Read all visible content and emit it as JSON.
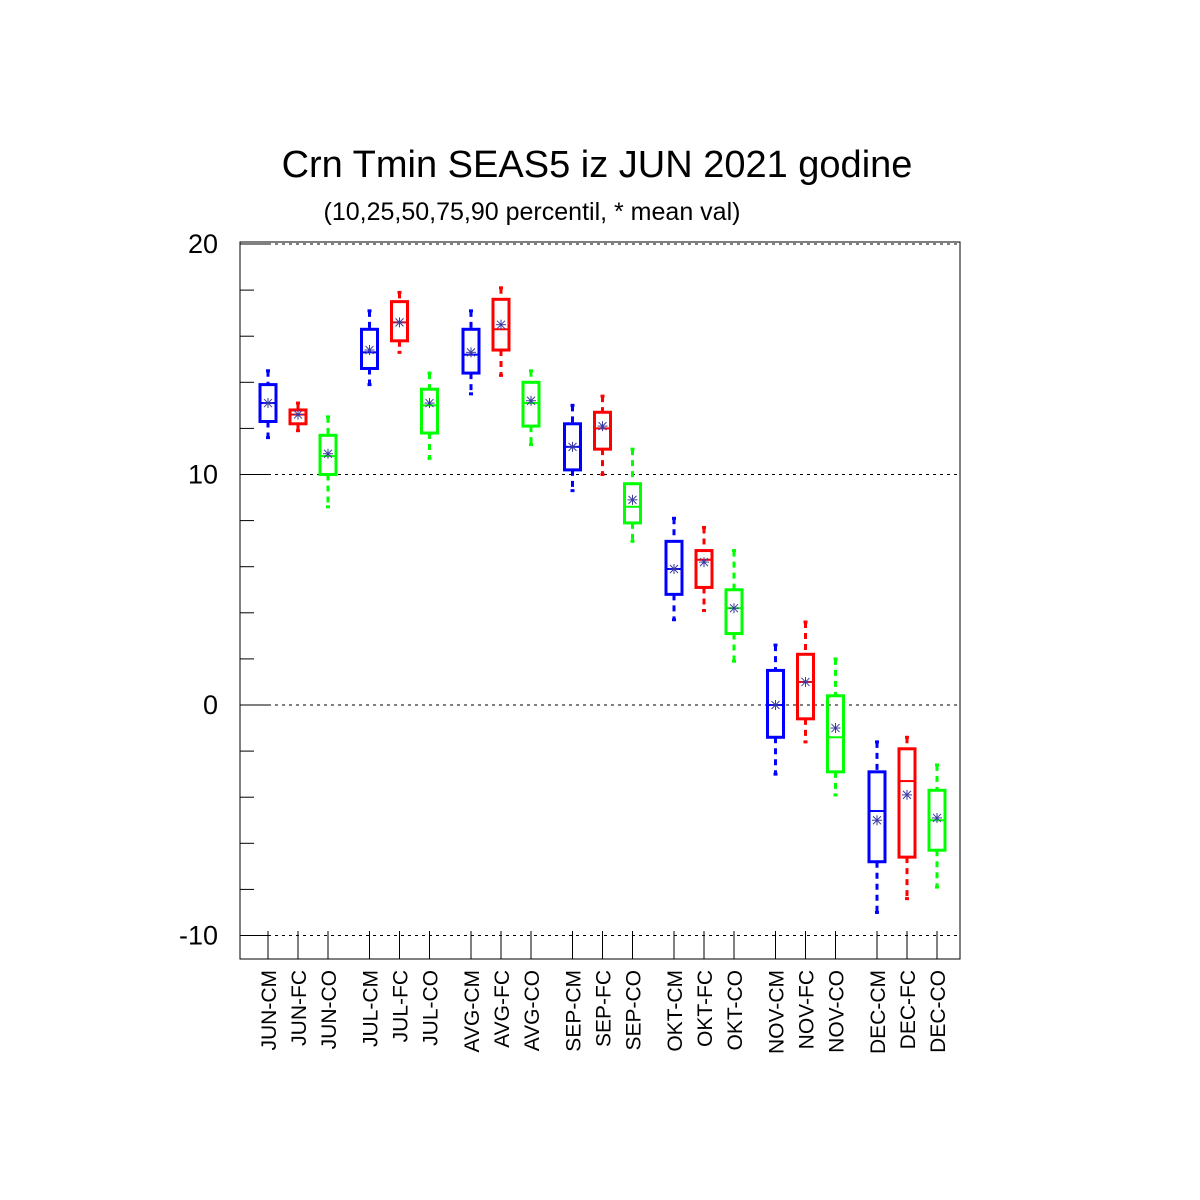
{
  "chart_data": {
    "type": "boxplot",
    "title": "Crn Tmin SEAS5 iz JUN 2021 godine",
    "subtitle": "(10,25,50,75,90 percentil, * mean val)",
    "ylim": [
      -11,
      20
    ],
    "yticks_major": [
      -10,
      0,
      10,
      20
    ],
    "yticks_major_labels": [
      "-10",
      "0",
      "10",
      "20"
    ],
    "yticks_minor": [
      -8,
      -6,
      -4,
      -2,
      2,
      4,
      6,
      8,
      12,
      14,
      16,
      18
    ],
    "grid_dashed_at": [
      -10,
      0,
      10,
      20
    ],
    "series_colors": {
      "CM": "#0000ff",
      "FC": "#ff0000",
      "CO": "#00ff00",
      "mean_marker": "#3a3aa0"
    },
    "boxes": [
      {
        "label": "JUN-CM",
        "kind": "CM",
        "p10": 11.6,
        "p25": 12.3,
        "p50": 13.1,
        "p75": 13.9,
        "p90": 14.5,
        "mean": 13.1
      },
      {
        "label": "JUN-FC",
        "kind": "FC",
        "p10": 11.9,
        "p25": 12.2,
        "p50": 12.6,
        "p75": 12.8,
        "p90": 13.1,
        "mean": 12.6
      },
      {
        "label": "JUN-CO",
        "kind": "CO",
        "p10": 8.6,
        "p25": 10.0,
        "p50": 10.8,
        "p75": 11.7,
        "p90": 12.5,
        "mean": 10.9
      },
      {
        "label": "JUL-CM",
        "kind": "CM",
        "p10": 13.9,
        "p25": 14.6,
        "p50": 15.3,
        "p75": 16.3,
        "p90": 17.1,
        "mean": 15.4
      },
      {
        "label": "JUL-FC",
        "kind": "FC",
        "p10": 15.3,
        "p25": 15.8,
        "p50": 16.6,
        "p75": 17.5,
        "p90": 17.9,
        "mean": 16.6
      },
      {
        "label": "JUL-CO",
        "kind": "CO",
        "p10": 10.7,
        "p25": 11.8,
        "p50": 13.0,
        "p75": 13.7,
        "p90": 14.4,
        "mean": 13.1
      },
      {
        "label": "AVG-CM",
        "kind": "CM",
        "p10": 13.5,
        "p25": 14.4,
        "p50": 15.2,
        "p75": 16.3,
        "p90": 17.1,
        "mean": 15.3
      },
      {
        "label": "AVG-FC",
        "kind": "FC",
        "p10": 14.3,
        "p25": 15.4,
        "p50": 16.3,
        "p75": 17.6,
        "p90": 18.1,
        "mean": 16.5
      },
      {
        "label": "AVG-CO",
        "kind": "CO",
        "p10": 11.3,
        "p25": 12.1,
        "p50": 13.1,
        "p75": 14.0,
        "p90": 14.5,
        "mean": 13.2
      },
      {
        "label": "SEP-CM",
        "kind": "CM",
        "p10": 9.3,
        "p25": 10.2,
        "p50": 11.2,
        "p75": 12.2,
        "p90": 13.0,
        "mean": 11.2
      },
      {
        "label": "SEP-FC",
        "kind": "FC",
        "p10": 10.0,
        "p25": 11.1,
        "p50": 12.0,
        "p75": 12.7,
        "p90": 13.4,
        "mean": 12.1
      },
      {
        "label": "SEP-CO",
        "kind": "CO",
        "p10": 7.1,
        "p25": 7.9,
        "p50": 8.6,
        "p75": 9.6,
        "p90": 11.1,
        "mean": 8.9
      },
      {
        "label": "OKT-CM",
        "kind": "CM",
        "p10": 3.7,
        "p25": 4.8,
        "p50": 5.9,
        "p75": 7.1,
        "p90": 8.1,
        "mean": 5.9
      },
      {
        "label": "OKT-FC",
        "kind": "FC",
        "p10": 4.1,
        "p25": 5.1,
        "p50": 6.3,
        "p75": 6.7,
        "p90": 7.7,
        "mean": 6.2
      },
      {
        "label": "OKT-CO",
        "kind": "CO",
        "p10": 1.9,
        "p25": 3.1,
        "p50": 4.2,
        "p75": 5.0,
        "p90": 6.7,
        "mean": 4.2
      },
      {
        "label": "NOV-CM",
        "kind": "CM",
        "p10": -3.0,
        "p25": -1.4,
        "p50": 0.0,
        "p75": 1.5,
        "p90": 2.6,
        "mean": 0.0
      },
      {
        "label": "NOV-FC",
        "kind": "FC",
        "p10": -1.6,
        "p25": -0.6,
        "p50": 1.0,
        "p75": 2.2,
        "p90": 3.6,
        "mean": 1.0
      },
      {
        "label": "NOV-CO",
        "kind": "CO",
        "p10": -3.9,
        "p25": -2.9,
        "p50": -1.4,
        "p75": 0.4,
        "p90": 2.0,
        "mean": -1.0
      },
      {
        "label": "DEC-CM",
        "kind": "CM",
        "p10": -9.0,
        "p25": -6.8,
        "p50": -4.6,
        "p75": -2.9,
        "p90": -1.6,
        "mean": -5.0
      },
      {
        "label": "DEC-FC",
        "kind": "FC",
        "p10": -8.4,
        "p25": -6.6,
        "p50": -3.3,
        "p75": -1.9,
        "p90": -1.4,
        "mean": -3.9
      },
      {
        "label": "DEC-CO",
        "kind": "CO",
        "p10": -7.9,
        "p25": -6.3,
        "p50": -5.0,
        "p75": -3.7,
        "p90": -2.6,
        "mean": -4.9
      }
    ]
  }
}
